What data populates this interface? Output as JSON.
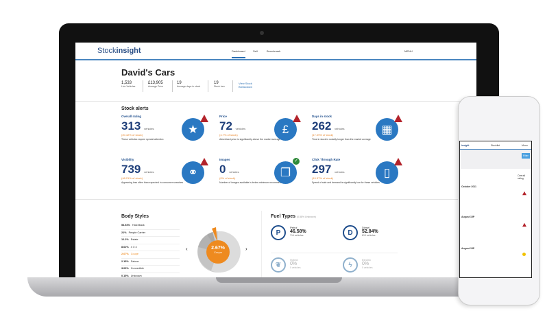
{
  "app": {
    "logo": "Stockinsight",
    "logo_a": "Stock",
    "logo_b": "insight"
  },
  "nav": {
    "tabs": [
      "Dashboard",
      "Sell",
      "Benchmark"
    ],
    "active": "Dashboard",
    "menu": "MENU"
  },
  "header": {
    "title": "David's Cars",
    "stats": [
      {
        "value": "1,533",
        "label": "Live Vehicles"
      },
      {
        "value": "£13,905",
        "label": "Average Price"
      },
      {
        "value": "19",
        "label": "Average days in stock"
      },
      {
        "value": "19",
        "label": "Stock turn"
      }
    ],
    "link": "View Stock Breakdown"
  },
  "alerts": {
    "title": "Stock alerts",
    "cards": [
      {
        "label": "Overall rating",
        "value": "313",
        "unit": "vehicles",
        "pct": "(20.42% of stock)",
        "desc": "These vehicles require special attention",
        "icon": "star",
        "status": "warning"
      },
      {
        "label": "Price",
        "value": "72",
        "unit": "vehicles",
        "pct": "(4.7% of stock)",
        "desc": "Advertised price is significantly above the market average",
        "icon": "pound",
        "status": "warning"
      },
      {
        "label": "Days in stock",
        "value": "262",
        "unit": "vehicles",
        "pct": "(17.09% of stock)",
        "desc": "Time in stock is notably longer than the market average",
        "icon": "calendar",
        "status": "warning"
      },
      {
        "label": "Visibility",
        "value": "739",
        "unit": "vehicles",
        "pct": "(48.21% of stock)",
        "desc": "Appearing less often than expected in consumer searches",
        "icon": "binoculars",
        "status": "warning"
      },
      {
        "label": "Images",
        "value": "0",
        "unit": "vehicles",
        "pct": "(0% of stock)",
        "desc": "Number of images available is below minimum recommended",
        "icon": "images",
        "status": "ok"
      },
      {
        "label": "Click Through Rate",
        "value": "297",
        "unit": "vehicles",
        "pct": "(19.37% of stock)",
        "desc": "Speed of sale and demand is significantly low for these vehicles",
        "icon": "mouse",
        "status": "warning"
      }
    ]
  },
  "body_styles": {
    "title": "Body Styles",
    "items": [
      {
        "pct": "53.53%",
        "name": "Hatchback"
      },
      {
        "pct": "21%",
        "name": "People Carrier"
      },
      {
        "pct": "12.2%",
        "name": "Estate"
      },
      {
        "pct": "8.62%",
        "name": "4 X 4"
      },
      {
        "pct": "2.67%",
        "name": "Coupe"
      },
      {
        "pct": "2.15%",
        "name": "Saloon"
      },
      {
        "pct": "3.09%",
        "name": "Convertible"
      },
      {
        "pct": "0.15%",
        "name": "Unknown"
      }
    ],
    "selected": {
      "pct": "2.67%",
      "name": "Coupe"
    },
    "prev": "‹",
    "next": "›",
    "colors": {
      "accent": "#ee8a1f",
      "grey": "#c8c8c8"
    }
  },
  "fuel": {
    "title": "Fuel Types",
    "note": "(0.58% Unknown)",
    "items": [
      {
        "name": "Petrol",
        "pct": "46.58%",
        "count": "714 vehicles",
        "icon": "P"
      },
      {
        "name": "Diesel",
        "pct": "52.84%",
        "count": "810 vehicles",
        "icon": "D"
      },
      {
        "name": "Hybrid",
        "pct": "0%",
        "count": "0 vehicles",
        "icon": "❦"
      },
      {
        "name": "Electric",
        "pct": "0%",
        "count": "0 vehicles",
        "icon": "ϟ"
      }
    ]
  },
  "phone": {
    "logo": "insight",
    "title": "Stocklist",
    "menu": "Menu",
    "filter": "Filter",
    "col": "Overall rating",
    "rows": [
      "October 2011",
      "August 15P",
      "August 15P"
    ]
  }
}
